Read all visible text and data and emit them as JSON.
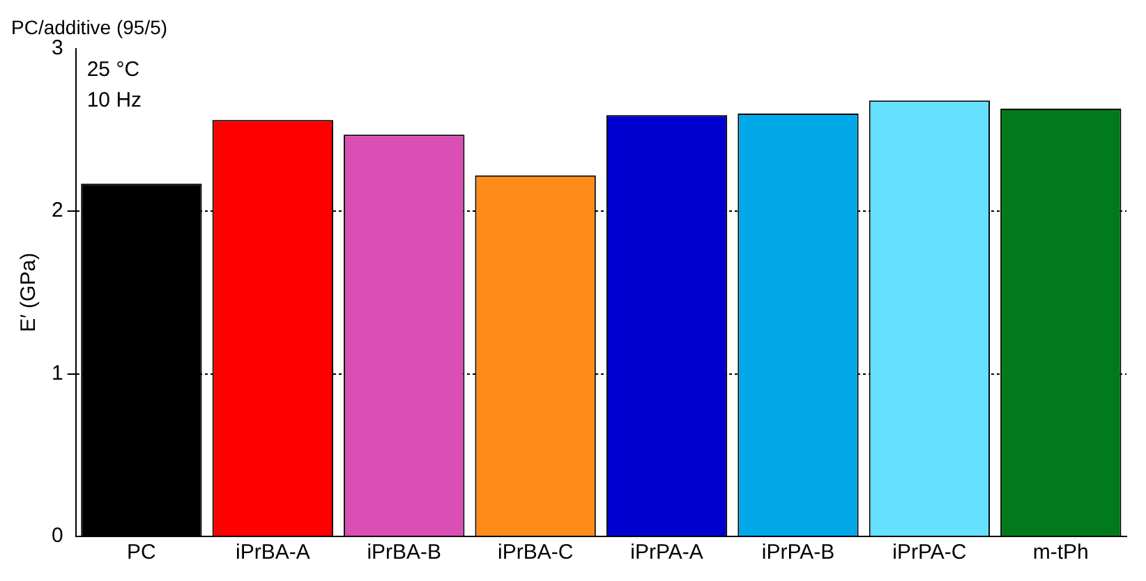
{
  "chart_data": {
    "type": "bar",
    "title": "PC/additive (95/5)",
    "ylabel": "E′ (GPa)",
    "categories": [
      "PC",
      "iPrBA-A",
      "iPrBA-B",
      "iPrBA-C",
      "iPrPA-A",
      "iPrPA-B",
      "iPrPA-C",
      "m-tPh"
    ],
    "values": [
      2.17,
      2.56,
      2.47,
      2.22,
      2.59,
      2.6,
      2.68,
      2.63
    ],
    "colors": [
      "#000000",
      "#ff0000",
      "#d94fb5",
      "#ff8c1a",
      "#0000d0",
      "#00a8e8",
      "#66e0ff",
      "#007a1a"
    ],
    "annotations": [
      "25 °C",
      "10 Hz"
    ],
    "ylim": [
      0,
      3
    ],
    "yticks": [
      0,
      1,
      2,
      3
    ],
    "grid": "y",
    "legend": false
  }
}
